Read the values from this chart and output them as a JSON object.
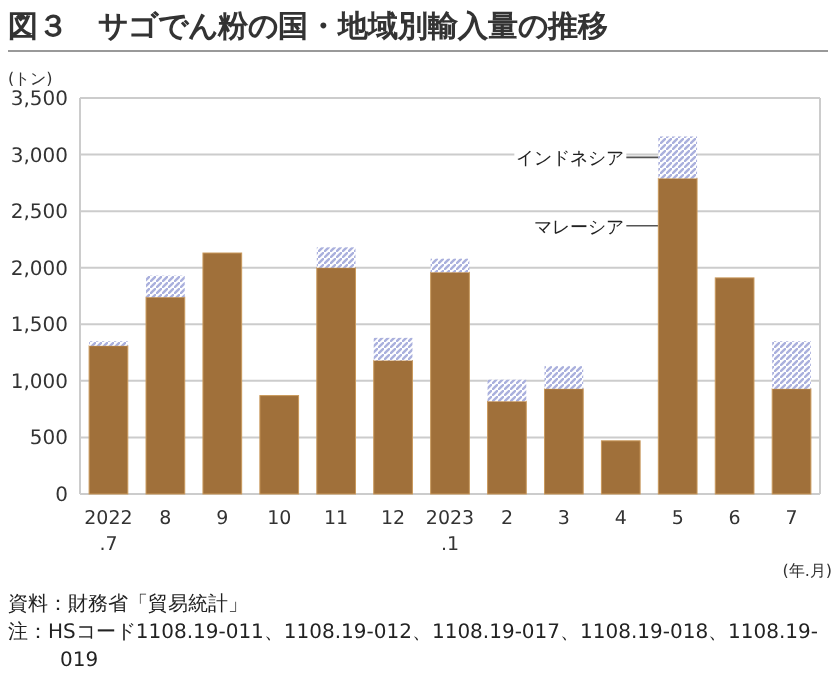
{
  "chart_data": {
    "type": "bar",
    "stacked": true,
    "title": "図３　サゴでん粉の国・地域別輸入量の推移",
    "ylabel": "(トン)",
    "xlabel": "(年.月)",
    "categories": [
      "2022.7",
      "8",
      "9",
      "10",
      "11",
      "12",
      "2023.1",
      "2",
      "3",
      "4",
      "5",
      "6",
      "7"
    ],
    "series": [
      {
        "name": "マレーシア",
        "color": "#a0703a",
        "values": [
          1310,
          1740,
          2130,
          870,
          2000,
          1180,
          1960,
          820,
          930,
          470,
          2790,
          1910,
          930
        ]
      },
      {
        "name": "インドネシア",
        "color": "#aab0dd",
        "values": [
          40,
          190,
          0,
          0,
          180,
          200,
          120,
          190,
          200,
          0,
          370,
          0,
          420
        ]
      }
    ],
    "ylim": [
      0,
      3500
    ],
    "yticks": [
      {
        "value": 0,
        "label": "0"
      },
      {
        "value": 500,
        "label": "500"
      },
      {
        "value": 1000,
        "label": "1,000"
      },
      {
        "value": 1500,
        "label": "1,500"
      },
      {
        "value": 2000,
        "label": "2,000"
      },
      {
        "value": 2500,
        "label": "2,500"
      },
      {
        "value": 3000,
        "label": "3,000"
      },
      {
        "value": 3500,
        "label": "3,500"
      }
    ],
    "grid": "y",
    "legend": false,
    "annotations": [
      "資料：財務省「貿易統計」",
      "注：HSコード1108.19-011、1108.19-012、1108.19-017、1108.19-018、1108.19-019"
    ]
  }
}
